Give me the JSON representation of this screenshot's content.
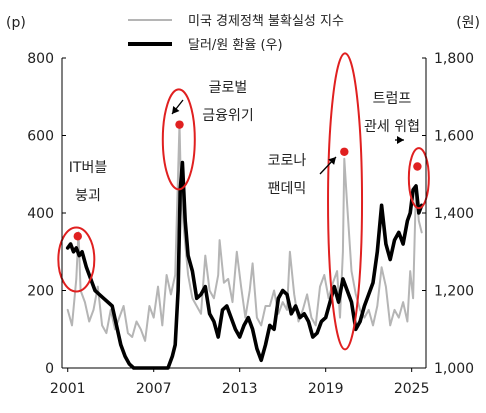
{
  "chart_data": {
    "type": "line",
    "left_axis": {
      "unit": "(p)",
      "ticks": [
        0,
        200,
        400,
        600,
        800
      ],
      "ylim": [
        0,
        800
      ]
    },
    "right_axis": {
      "unit": "(원)",
      "ticks": [
        "1,000",
        "1,200",
        "1,400",
        "1,600",
        "1,800"
      ],
      "tick_values": [
        1000,
        1200,
        1400,
        1600,
        1800
      ],
      "ylim": [
        1000,
        1800
      ]
    },
    "x_axis": {
      "ticks": [
        "2001",
        "2007",
        "2013",
        "2019",
        "2025"
      ],
      "tick_values": [
        2001,
        2007,
        2013,
        2019,
        2025
      ],
      "xlim": [
        2000.6,
        2026.0
      ]
    },
    "series": [
      {
        "name": "미국 경제정책 불확실성 지수",
        "axis": "left",
        "color": "#b5b5b5",
        "x": [
          2001.0,
          2001.3,
          2001.6,
          2001.75,
          2001.9,
          2002.2,
          2002.5,
          2002.8,
          2003.1,
          2003.4,
          2003.7,
          2004.0,
          2004.3,
          2004.6,
          2004.9,
          2005.2,
          2005.5,
          2005.8,
          2006.1,
          2006.4,
          2006.7,
          2007.0,
          2007.3,
          2007.6,
          2007.9,
          2008.2,
          2008.5,
          2008.8,
          2008.9,
          2009.1,
          2009.4,
          2009.7,
          2010.0,
          2010.3,
          2010.6,
          2010.9,
          2011.2,
          2011.5,
          2011.6,
          2011.9,
          2012.2,
          2012.5,
          2012.8,
          2013.1,
          2013.4,
          2013.7,
          2013.9,
          2014.2,
          2014.5,
          2014.8,
          2015.1,
          2015.4,
          2015.7,
          2016.0,
          2016.3,
          2016.5,
          2016.8,
          2017.1,
          2017.4,
          2017.7,
          2018.0,
          2018.3,
          2018.6,
          2018.9,
          2019.2,
          2019.5,
          2019.8,
          2020.0,
          2020.2,
          2020.3,
          2020.5,
          2020.8,
          2021.1,
          2021.4,
          2021.7,
          2022.0,
          2022.3,
          2022.6,
          2022.9,
          2023.2,
          2023.5,
          2023.8,
          2024.1,
          2024.4,
          2024.7,
          2024.9,
          2025.1,
          2025.3,
          2025.5,
          2025.7
        ],
        "values": [
          150,
          110,
          230,
          350,
          200,
          170,
          120,
          150,
          210,
          110,
          90,
          150,
          100,
          130,
          160,
          90,
          80,
          120,
          100,
          70,
          160,
          130,
          210,
          110,
          240,
          190,
          240,
          630,
          470,
          360,
          240,
          180,
          160,
          140,
          290,
          200,
          180,
          240,
          330,
          220,
          230,
          170,
          300,
          210,
          130,
          200,
          270,
          130,
          110,
          160,
          160,
          200,
          140,
          170,
          150,
          300,
          190,
          120,
          150,
          190,
          130,
          110,
          210,
          240,
          180,
          220,
          250,
          130,
          300,
          540,
          420,
          250,
          190,
          150,
          130,
          150,
          110,
          160,
          260,
          210,
          110,
          150,
          130,
          170,
          120,
          250,
          180,
          470,
          380,
          350
        ]
      },
      {
        "name": "달러/원 환율 (우)",
        "axis": "right",
        "color": "#000000",
        "x": [
          2001.0,
          2001.2,
          2001.4,
          2001.6,
          2001.8,
          2002.0,
          2002.3,
          2002.6,
          2002.9,
          2003.2,
          2003.5,
          2003.8,
          2004.1,
          2004.4,
          2004.7,
          2005.0,
          2005.3,
          2005.6,
          2005.9,
          2006.2,
          2006.5,
          2006.8,
          2007.1,
          2007.4,
          2007.7,
          2008.0,
          2008.3,
          2008.5,
          2008.7,
          2008.85,
          2009.0,
          2009.2,
          2009.4,
          2009.7,
          2010.0,
          2010.3,
          2010.6,
          2010.9,
          2011.2,
          2011.5,
          2011.8,
          2012.1,
          2012.4,
          2012.7,
          2013.0,
          2013.3,
          2013.6,
          2013.9,
          2014.2,
          2014.5,
          2014.8,
          2015.1,
          2015.4,
          2015.7,
          2016.0,
          2016.3,
          2016.6,
          2016.9,
          2017.2,
          2017.5,
          2017.8,
          2018.1,
          2018.4,
          2018.7,
          2019.0,
          2019.3,
          2019.6,
          2019.9,
          2020.2,
          2020.5,
          2020.8,
          2021.1,
          2021.4,
          2021.7,
          2022.0,
          2022.3,
          2022.6,
          2022.9,
          2023.2,
          2023.5,
          2023.8,
          2024.1,
          2024.4,
          2024.7,
          2024.9,
          2025.1,
          2025.3,
          2025.5,
          2025.7
        ],
        "values": [
          1310,
          1320,
          1300,
          1310,
          1290,
          1300,
          1260,
          1230,
          1200,
          1190,
          1180,
          1170,
          1160,
          1110,
          1060,
          1030,
          1010,
          1000,
          990,
          975,
          960,
          940,
          935,
          930,
          920,
          950,
          1030,
          1060,
          1200,
          1460,
          1530,
          1380,
          1290,
          1250,
          1180,
          1190,
          1210,
          1140,
          1120,
          1080,
          1150,
          1160,
          1130,
          1100,
          1080,
          1110,
          1130,
          1100,
          1050,
          1020,
          1060,
          1110,
          1100,
          1180,
          1200,
          1190,
          1140,
          1160,
          1130,
          1140,
          1120,
          1080,
          1090,
          1120,
          1130,
          1170,
          1210,
          1170,
          1230,
          1200,
          1170,
          1100,
          1120,
          1160,
          1190,
          1220,
          1300,
          1420,
          1320,
          1280,
          1330,
          1350,
          1320,
          1380,
          1400,
          1460,
          1470,
          1400,
          1420
        ]
      }
    ],
    "annotations": [
      {
        "label": [
          "IT버블",
          "붕괴"
        ],
        "x": 2001.7,
        "y": 340
      },
      {
        "label": [
          "글로벌",
          "금융위기"
        ],
        "x": 2008.8,
        "y": 628
      },
      {
        "label": [
          "코로나",
          "팬데믹"
        ],
        "x": 2020.3,
        "y": 558
      },
      {
        "label": [
          "트럼프",
          "관세 위협"
        ],
        "x": 2025.4,
        "y": 520
      }
    ]
  }
}
